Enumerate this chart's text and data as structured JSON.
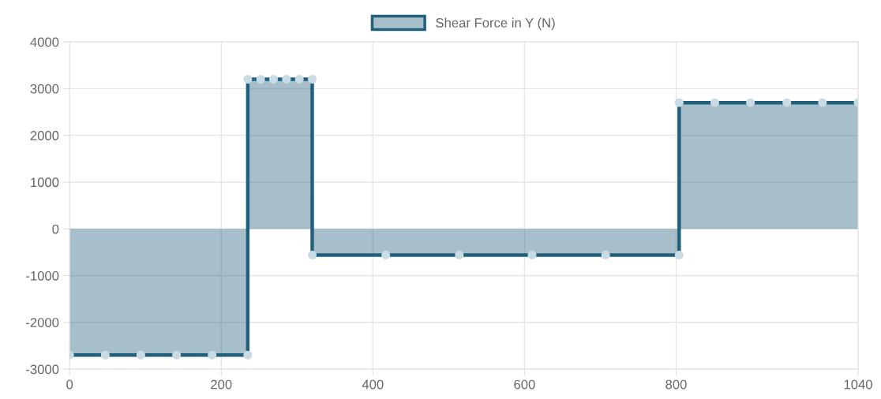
{
  "chart_data": {
    "type": "area",
    "x": [
      0,
      47,
      94,
      141,
      188,
      235,
      235,
      252,
      269,
      286,
      303,
      320,
      320,
      417,
      514,
      610,
      707,
      804,
      804,
      851,
      898,
      946,
      993,
      1040
    ],
    "series": [
      {
        "name": "Shear Force in Y (N)",
        "color": "#215f7a",
        "values": [
          -2700,
          -2700,
          -2700,
          -2700,
          -2700,
          -2700,
          3200,
          3200,
          3200,
          3200,
          3200,
          3200,
          -560,
          -560,
          -560,
          -560,
          -560,
          -560,
          2700,
          2700,
          2700,
          2700,
          2700,
          2700
        ]
      }
    ],
    "xlim": [
      0,
      1040
    ],
    "xticks": [
      0,
      200,
      400,
      600,
      800,
      1040
    ],
    "ylim": [
      -3000,
      4000
    ],
    "yticks": [
      -3000,
      -2000,
      -1000,
      0,
      1000,
      2000,
      3000,
      4000
    ],
    "grid": true,
    "legend": "top",
    "marker": "circle",
    "line_style": "solid"
  }
}
